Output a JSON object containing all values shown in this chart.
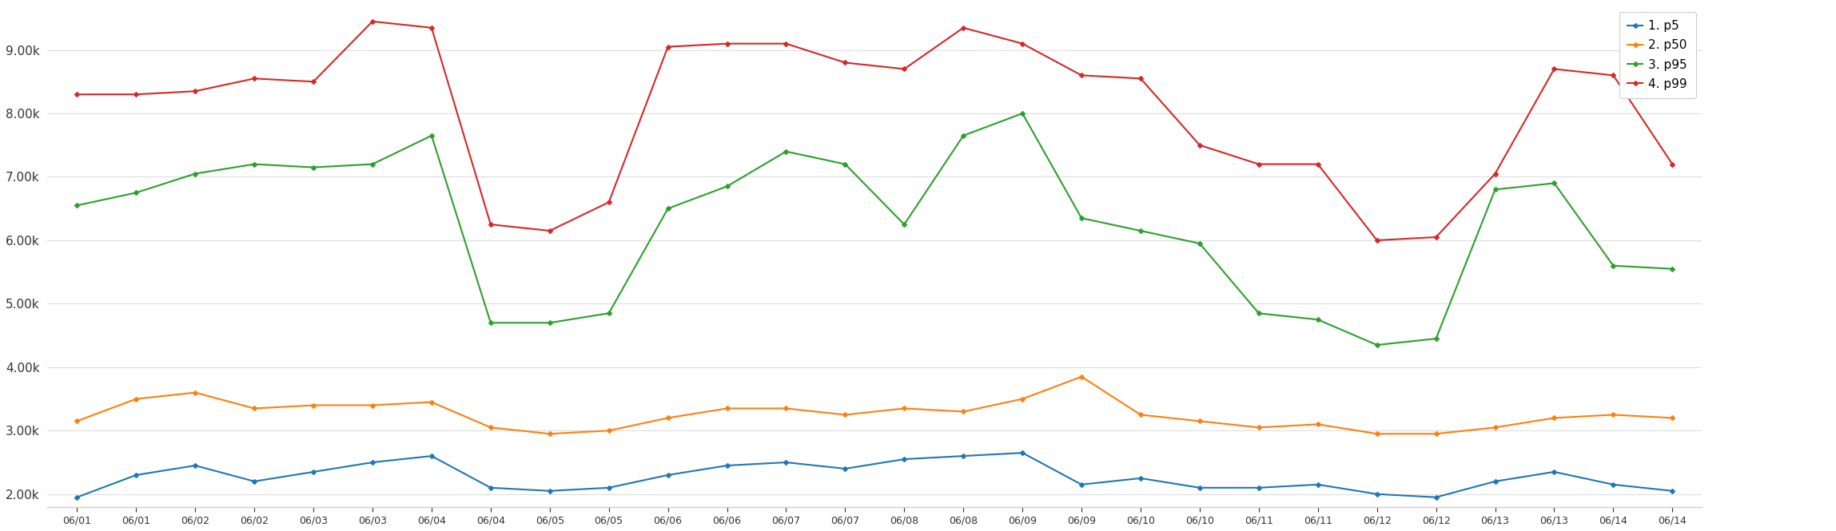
{
  "x_labels": [
    "06/01",
    "06/01",
    "06/02",
    "06/02",
    "06/03",
    "06/03",
    "06/04",
    "06/04",
    "06/05",
    "06/05",
    "06/06",
    "06/06",
    "06/07",
    "06/07",
    "06/08",
    "06/08",
    "06/09",
    "06/09",
    "06/10",
    "06/10",
    "06/11",
    "06/11",
    "06/12",
    "06/12",
    "06/13",
    "06/13",
    "06/14",
    "06/14"
  ],
  "p5": [
    1950,
    2300,
    2450,
    2200,
    2350,
    2500,
    2600,
    2100,
    2050,
    2100,
    2300,
    2450,
    2500,
    2400,
    2550,
    2600,
    2650,
    2150,
    2250,
    2100,
    2100,
    2150,
    2000,
    1950,
    2200,
    2350,
    2150,
    2050
  ],
  "p50": [
    3150,
    3500,
    3600,
    3350,
    3400,
    3400,
    3450,
    3050,
    2950,
    3000,
    3200,
    3350,
    3350,
    3250,
    3350,
    3300,
    3500,
    3850,
    3250,
    3150,
    3050,
    3100,
    2950,
    2950,
    3050,
    3200,
    3250,
    3200
  ],
  "p95": [
    6550,
    6750,
    7050,
    7200,
    7150,
    7200,
    7650,
    4700,
    4700,
    4850,
    6500,
    6850,
    7400,
    7200,
    6250,
    7650,
    8000,
    6350,
    6150,
    5950,
    4850,
    4750,
    4350,
    4450,
    6800,
    6900,
    5600,
    5550
  ],
  "p99": [
    8300,
    8300,
    8350,
    8550,
    8500,
    9450,
    9350,
    6250,
    6150,
    6600,
    9050,
    9100,
    9100,
    8800,
    8700,
    9350,
    9100,
    8600,
    8550,
    7500,
    7200,
    7200,
    6000,
    6050,
    7050,
    8700,
    8600,
    7200
  ],
  "colors": {
    "p5": "#1f77b4",
    "p50": "#ff7f0e",
    "p95": "#2ca02c",
    "p99": "#d62728"
  },
  "legend_labels": [
    "1. p5",
    "2. p50",
    "3. p95",
    "4. p99"
  ],
  "ylim": [
    1800,
    9700
  ],
  "yticks": [
    2000,
    3000,
    4000,
    5000,
    6000,
    7000,
    8000,
    9000
  ],
  "ytick_labels": [
    "2.00k",
    "3.00k",
    "4.00k",
    "5.00k",
    "6.00k",
    "7.00k",
    "8.00k",
    "9.00k"
  ],
  "background_color": "#ffffff",
  "grid_color": "#dddddd",
  "marker": "D",
  "markersize": 3
}
